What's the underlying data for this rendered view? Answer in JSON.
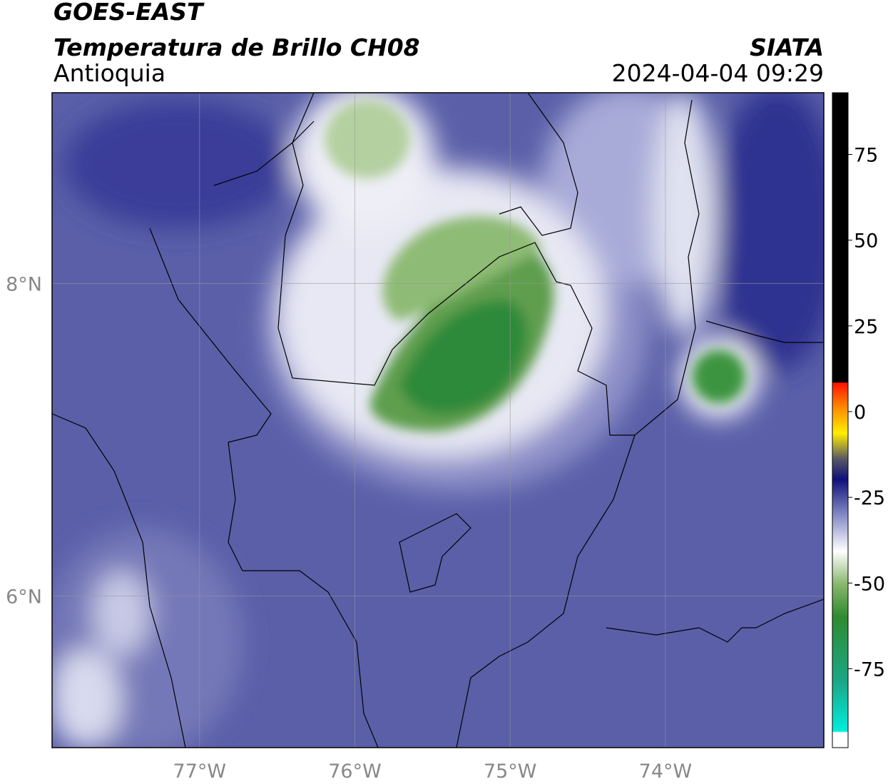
{
  "header": {
    "title": "GOES-EAST",
    "subtitle": "Temperatura de Brillo CH08",
    "source": "SIATA",
    "region": "Antioquia",
    "datetime": "2024-04-04 09:29"
  },
  "map": {
    "lon_range": [
      -77.95,
      -72.98
    ],
    "lat_range": [
      5.03,
      9.22
    ],
    "lon_ticks": [
      {
        "value": -77,
        "label": "77°W"
      },
      {
        "value": -76,
        "label": "76°W"
      },
      {
        "value": -75,
        "label": "75°W"
      },
      {
        "value": -74,
        "label": "74°W"
      }
    ],
    "lat_ticks": [
      {
        "value": 8,
        "label": "8°N"
      },
      {
        "value": 6,
        "label": "6°N"
      }
    ]
  },
  "colorbar": {
    "lim": [
      -98,
      93
    ],
    "ticks": [
      75,
      50,
      25,
      0,
      -25,
      -50,
      -75
    ]
  }
}
